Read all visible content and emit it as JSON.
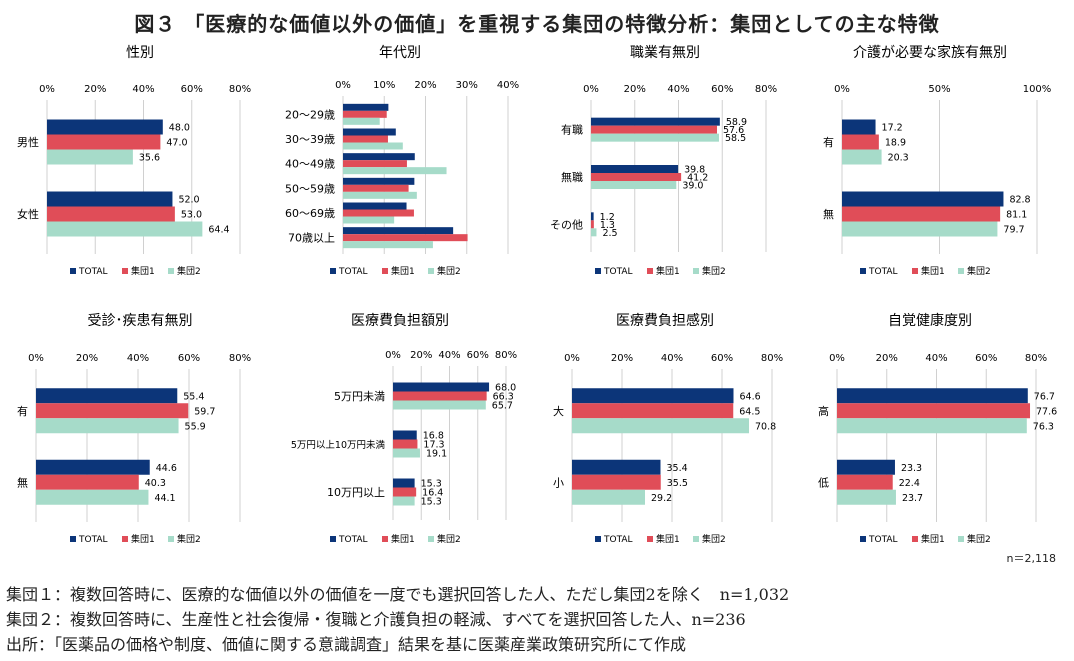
{
  "title": "図３ 「医療的な価値以外の価値」を重視する集団の特徴分析：集団としての主な特徴",
  "n_label": "n＝2,118",
  "notes": [
    "集団１：複数回答時に、医療的な価値以外の価値を一度でも選択回答した人、ただし集団2を除く　n=1,032",
    "集団２：複数回答時に、生産性と社会復帰・復職と介護負担の軽減、すべてを選択回答した人、n=236",
    "出所：「医薬品の価格や制度、価値に関する意識調査」結果を基に医薬産業政策研究所にて作成"
  ],
  "colors": {
    "TOTAL": "#0c3579",
    "集団1": "#e04d58",
    "集団2": "#a6dbc9"
  },
  "chart_data": [
    {
      "type": "bar",
      "title": "性別",
      "categories": [
        "男性",
        "女性"
      ],
      "xlim": [
        0,
        80
      ],
      "ticks": [
        "0%",
        "20%",
        "40%",
        "60%",
        "80%"
      ],
      "show_labels": true,
      "legend": [
        "TOTAL",
        "集団1",
        "集団2"
      ],
      "series": [
        {
          "name": "TOTAL",
          "values": [
            48.0,
            52.0
          ]
        },
        {
          "name": "集団1",
          "values": [
            47.0,
            53.0
          ]
        },
        {
          "name": "集団2",
          "values": [
            35.6,
            64.4
          ]
        }
      ]
    },
    {
      "type": "bar",
      "title": "年代別",
      "categories": [
        "20～29歳",
        "30～39歳",
        "40～49歳",
        "50～59歳",
        "60～69歳",
        "70歳以上"
      ],
      "xlim": [
        0,
        40
      ],
      "ticks": [
        "0%",
        "10%",
        "20%",
        "30%",
        "40%"
      ],
      "show_labels": false,
      "legend": [
        "TOTAL",
        "集団1",
        "集団2"
      ],
      "series": [
        {
          "name": "TOTAL",
          "values": [
            11.0,
            12.8,
            17.4,
            17.3,
            15.4,
            26.7
          ]
        },
        {
          "name": "集団1",
          "values": [
            10.6,
            10.9,
            15.5,
            15.9,
            17.2,
            30.2
          ]
        },
        {
          "name": "集団2",
          "values": [
            8.9,
            14.5,
            25.1,
            17.9,
            12.4,
            21.8
          ]
        }
      ]
    },
    {
      "type": "bar",
      "title": "職業有無別",
      "categories": [
        "有職",
        "無職",
        "その他"
      ],
      "xlim": [
        0,
        80
      ],
      "ticks": [
        "0%",
        "20%",
        "40%",
        "60%",
        "80%"
      ],
      "show_labels": true,
      "legend": [
        "TOTAL",
        "集団1",
        "集団2"
      ],
      "series": [
        {
          "name": "TOTAL",
          "values": [
            58.9,
            39.8,
            1.2
          ]
        },
        {
          "name": "集団1",
          "values": [
            57.6,
            41.2,
            1.3
          ]
        },
        {
          "name": "集団2",
          "values": [
            58.5,
            39.0,
            2.5
          ]
        }
      ]
    },
    {
      "type": "bar",
      "title": "介護が必要な家族有無別",
      "categories": [
        "有",
        "無"
      ],
      "xlim": [
        0,
        100
      ],
      "ticks": [
        "0%",
        "50%",
        "100%"
      ],
      "show_labels": true,
      "legend": [
        "TOTAL",
        "集団1",
        "集団2"
      ],
      "series": [
        {
          "name": "TOTAL",
          "values": [
            17.2,
            82.8
          ]
        },
        {
          "name": "集団1",
          "values": [
            18.9,
            81.1
          ]
        },
        {
          "name": "集団2",
          "values": [
            20.3,
            79.7
          ]
        }
      ]
    },
    {
      "type": "bar",
      "title": "受診･疾患有無別",
      "categories": [
        "有",
        "無"
      ],
      "xlim": [
        0,
        80
      ],
      "ticks": [
        "0%",
        "20%",
        "40%",
        "60%",
        "80%"
      ],
      "show_labels": true,
      "legend": [
        "TOTAL",
        "集団1",
        "集団2"
      ],
      "series": [
        {
          "name": "TOTAL",
          "values": [
            55.4,
            44.6
          ]
        },
        {
          "name": "集団1",
          "values": [
            59.7,
            40.3
          ]
        },
        {
          "name": "集団2",
          "values": [
            55.9,
            44.1
          ]
        }
      ]
    },
    {
      "type": "bar",
      "title": "医療費負担額別",
      "categories": [
        "5万円未満",
        "5万円以上10万円未満",
        "10万円以上"
      ],
      "xlim": [
        0,
        80
      ],
      "ticks": [
        "0%",
        "20%",
        "40%",
        "60%",
        "80%"
      ],
      "show_labels": true,
      "legend": [
        "TOTAL",
        "集団1",
        "集団2"
      ],
      "series": [
        {
          "name": "TOTAL",
          "values": [
            68.0,
            16.8,
            15.3
          ]
        },
        {
          "name": "集団1",
          "values": [
            66.3,
            17.3,
            16.4
          ]
        },
        {
          "name": "集団2",
          "values": [
            65.7,
            19.1,
            15.3
          ]
        }
      ]
    },
    {
      "type": "bar",
      "title": "医療費負担感別",
      "categories": [
        "大",
        "小"
      ],
      "xlim": [
        0,
        80
      ],
      "ticks": [
        "0%",
        "20%",
        "40%",
        "60%",
        "80%"
      ],
      "show_labels": true,
      "legend": [
        "TOTAL",
        "集団1",
        "集団2"
      ],
      "series": [
        {
          "name": "TOTAL",
          "values": [
            64.6,
            35.4
          ]
        },
        {
          "name": "集団1",
          "values": [
            64.5,
            35.5
          ]
        },
        {
          "name": "集団2",
          "values": [
            70.8,
            29.2
          ]
        }
      ]
    },
    {
      "type": "bar",
      "title": "自覚健康度別",
      "categories": [
        "高",
        "低"
      ],
      "xlim": [
        0,
        80
      ],
      "ticks": [
        "0%",
        "20%",
        "40%",
        "60%",
        "80%"
      ],
      "show_labels": true,
      "legend": [
        "TOTAL",
        "集団1",
        "集団2"
      ],
      "series": [
        {
          "name": "TOTAL",
          "values": [
            76.7,
            23.3
          ]
        },
        {
          "name": "集団1",
          "values": [
            77.6,
            22.4
          ]
        },
        {
          "name": "集団2",
          "values": [
            76.3,
            23.7
          ]
        }
      ]
    }
  ]
}
